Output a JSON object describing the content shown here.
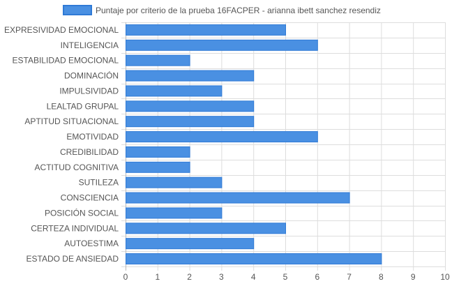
{
  "chart_data": {
    "type": "bar",
    "orientation": "horizontal",
    "legend": {
      "position": "top",
      "label": "Puntaje por criterio de la prueba 16FACPER - arianna ibett sanchez resendiz"
    },
    "categories": [
      "EXPRESIVIDAD EMOCIONAL",
      "INTELIGENCIA",
      "ESTABILIDAD EMOCIONAL",
      "DOMINACIÓN",
      "IMPULSIVIDAD",
      "LEALTAD GRUPAL",
      "APTITUD SITUACIONAL",
      "EMOTIVIDAD",
      "CREDIBILIDAD",
      "ACTITUD COGNITIVA",
      "SUTILEZA",
      "CONSCIENCIA",
      "POSICIÓN SOCIAL",
      "CERTEZA INDIVIDUAL",
      "AUTOESTIMA",
      "ESTADO DE ANSIEDAD"
    ],
    "series": [
      {
        "name": "Puntaje por criterio de la prueba 16FACPER - arianna ibett sanchez resendiz",
        "values": [
          5,
          6,
          2,
          4,
          3,
          4,
          4,
          6,
          2,
          2,
          3,
          7,
          3,
          5,
          4,
          8
        ]
      }
    ],
    "xlim": [
      0,
      10
    ],
    "xticks": [
      "0",
      "1",
      "2",
      "3",
      "4",
      "5",
      "6",
      "7",
      "8",
      "9",
      "10"
    ],
    "grid": true,
    "colors": {
      "bar_fill": "#4a90e2",
      "bar_stroke": "#2f7ad6",
      "grid": "#dddddd",
      "text": "#555555"
    }
  }
}
